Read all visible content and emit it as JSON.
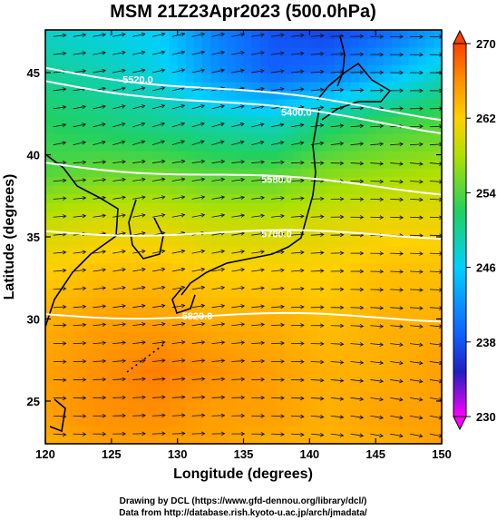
{
  "chart_data": {
    "type": "heatmap",
    "title": "MSM 21Z23Apr2023 (500.0hPa)",
    "xlabel": "Longitude (degrees)",
    "ylabel": "Latitude  (degrees)",
    "xlim": [
      120,
      150
    ],
    "ylim": [
      22.4,
      47.6
    ],
    "x_ticks": [
      "120",
      "125",
      "130",
      "135",
      "140",
      "145",
      "150"
    ],
    "y_ticks": [
      "25",
      "30",
      "35",
      "40",
      "45"
    ],
    "x_tick_values": [
      120,
      125,
      130,
      135,
      140,
      145,
      150
    ],
    "y_tick_values": [
      25,
      30,
      35,
      40,
      45
    ],
    "colorbar": {
      "ticks": [
        "230",
        "238",
        "246",
        "254",
        "262",
        "270"
      ],
      "tick_values": [
        230,
        238,
        246,
        254,
        262,
        270
      ],
      "range": [
        230,
        270
      ],
      "colors": [
        "#ff00ff",
        "#2020c0",
        "#1060ff",
        "#00d0ff",
        "#20d060",
        "#b0e000",
        "#ffd000",
        "#ff9000",
        "#ff4000"
      ]
    },
    "contours": [
      {
        "label": "5400.0",
        "lon": 139,
        "lat": 42.6
      },
      {
        "label": "5580.0",
        "lon": 137.5,
        "lat": 38.5
      },
      {
        "label": "5700.0",
        "lon": 137.5,
        "lat": 35.2
      },
      {
        "label": "5820.0",
        "lon": 131.5,
        "lat": 30.2
      },
      {
        "label": "5520.0",
        "lon": 127,
        "lat": 44.6
      }
    ],
    "temperature_field_K": [
      {
        "lat": 47.6,
        "values": [
          248,
          247,
          246,
          241,
          238,
          237,
          239,
          243
        ]
      },
      {
        "lat": 45,
        "values": [
          250,
          249,
          247,
          242,
          239,
          240,
          244,
          248
        ]
      },
      {
        "lat": 42,
        "values": [
          252,
          251,
          250,
          249,
          248,
          251,
          253,
          254
        ]
      },
      {
        "lat": 39,
        "values": [
          254,
          255,
          255,
          254,
          254,
          256,
          257,
          258
        ]
      },
      {
        "lat": 36,
        "values": [
          259,
          260,
          260,
          259,
          259,
          260,
          261,
          261
        ]
      },
      {
        "lat": 33,
        "values": [
          262,
          263,
          263,
          262,
          262,
          262,
          263,
          263
        ]
      },
      {
        "lat": 30,
        "values": [
          264,
          265,
          265,
          264,
          264,
          263,
          264,
          264
        ]
      },
      {
        "lat": 27,
        "values": [
          265,
          266,
          267,
          266,
          265,
          264,
          264,
          265
        ]
      },
      {
        "lat": 24,
        "values": [
          265,
          266,
          266,
          265,
          265,
          264,
          265,
          265
        ]
      },
      {
        "lat": 22.4,
        "values": [
          264,
          265,
          265,
          265,
          264,
          264,
          264,
          265
        ]
      }
    ]
  },
  "footer": {
    "line1": "Drawing by DCL (https://www.gfd-dennou.org/library/dcl/)",
    "line2": "Data from http://database.rish.kyoto-u.ac.jp/arch/jmadata/"
  }
}
